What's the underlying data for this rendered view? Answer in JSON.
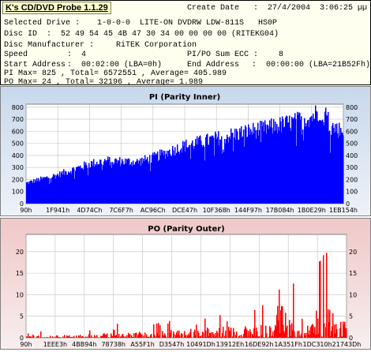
{
  "header": {
    "app_title": "K's CD/DVD Probe 1.1.29",
    "create_date_label": "Create Date",
    "create_date_value": ":  27/4/2004  3:06:25 µµ",
    "selected_drive_label": "Selected Drive :",
    "selected_drive_value": "1-0-0-0  LITE-ON DVDRW LDW-811S   HS0P",
    "disc_id_label": "Disc ID  :",
    "disc_id_value": "52 49 54 45 4B 47 30 34 00 00 00 00 (RITEKG04)",
    "disc_manufacturer_label": "Disc Manufacturer :",
    "disc_manufacturer_value": "RiTEK Corporation",
    "speed_label": "Speed",
    "speed_value": ":  4",
    "pipo_ecc_label": "PI/PO Sum ECC :",
    "pipo_ecc_value": "8",
    "start_address_label": "Start Address",
    "start_address_value": ":  00:02:00 (LBA=0h)",
    "end_address_label": "End Address",
    "end_address_value": ":  00:00:00 (LBA=21B52Fh)",
    "pi_summary": "PI Max= 825 , Total= 6572551 , Average= 405.989",
    "po_summary": "PO Max= 24 , Total= 32196 , Average= 1.989"
  },
  "chart_data": [
    {
      "type": "area",
      "title": "PI (Parity Inner)",
      "color": "#0000ff",
      "xlabel": "",
      "ylabel": "",
      "ylim": [
        0,
        825
      ],
      "yticks": [
        0,
        100,
        200,
        300,
        400,
        500,
        600,
        700,
        800
      ],
      "x_tick_labels": [
        "90h",
        "1F941h",
        "4D74Ch",
        "7C6F7h",
        "AC96Ch",
        "DCE47h",
        "10F368h",
        "144F97h",
        "17B084h",
        "1B0E29h",
        "1EB154h"
      ],
      "grid": true,
      "x": [
        0,
        0.05,
        0.1,
        0.15,
        0.2,
        0.25,
        0.3,
        0.35,
        0.4,
        0.45,
        0.5,
        0.55,
        0.6,
        0.65,
        0.7,
        0.75,
        0.8,
        0.85,
        0.9,
        0.93,
        0.96,
        1.0
      ],
      "values": [
        170,
        205,
        240,
        285,
        330,
        355,
        350,
        345,
        380,
        430,
        480,
        510,
        540,
        570,
        600,
        620,
        650,
        680,
        720,
        780,
        640,
        600
      ]
    },
    {
      "type": "bar",
      "title": "PO (Parity Outer)",
      "color": "#ff0000",
      "xlabel": "",
      "ylabel": "",
      "ylim": [
        0,
        24
      ],
      "yticks": [
        0,
        5,
        10,
        15,
        20
      ],
      "x_tick_labels": [
        "90h",
        "1EEE3h",
        "4BB94h",
        "78738h",
        "A55F1h",
        "D3547h",
        "10491Dh",
        "13912Eh",
        "16DE92h",
        "1A351Fh",
        "1DC310h",
        "21743Dh"
      ],
      "grid": true,
      "x": [
        0,
        0.1,
        0.2,
        0.3,
        0.4,
        0.5,
        0.6,
        0.7,
        0.8,
        0.85,
        0.9,
        0.93,
        0.96,
        1.0
      ],
      "values": [
        0.3,
        0.4,
        0.6,
        0.8,
        1.0,
        1.3,
        1.6,
        2.0,
        2.6,
        3.2,
        4.0,
        5.5,
        4.5,
        2.5
      ],
      "max": 24
    }
  ]
}
